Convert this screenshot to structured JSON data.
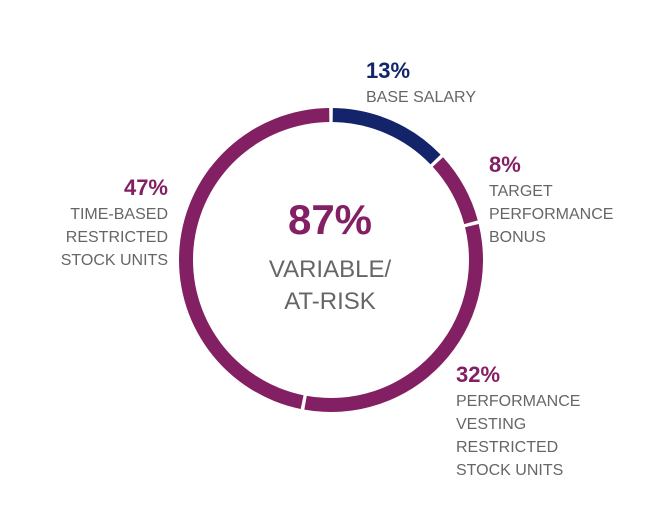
{
  "chart_data": {
    "type": "pie",
    "donut": true,
    "categories": [
      "BASE SALARY",
      "TARGET PERFORMANCE BONUS",
      "PERFORMANCE VESTING RESTRICTED STOCK UNITS",
      "TIME-BASED RESTRICTED STOCK UNITS"
    ],
    "values": [
      13,
      8,
      32,
      47
    ],
    "value_labels": [
      "13%",
      "8%",
      "32%",
      "47%"
    ],
    "colors": [
      "#14246b",
      "#832063",
      "#832063",
      "#832063"
    ],
    "center_value": 87,
    "center_value_label": "87%",
    "center_text": "VARIABLE/ AT-RISK",
    "center_color": "#832063"
  }
}
